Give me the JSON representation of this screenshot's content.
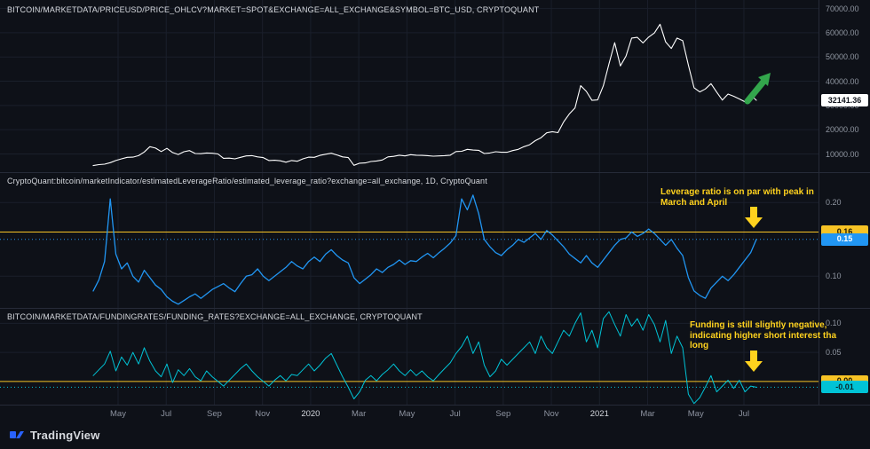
{
  "colors": {
    "background": "#0e1118",
    "grid": "#1a1f2b",
    "separator": "#262b38",
    "btc_line": "#ffffff",
    "leverage_line": "#2196f3",
    "funding_line": "#00c3d6",
    "highlight_yellow": "#f7c325",
    "annotation_yellow": "#ffd21e",
    "arrow_green": "#33a64c"
  },
  "icons": {
    "price_arrow": "green-up-right-arrow",
    "leverage_arrow": "yellow-down-arrow",
    "funding_arrow": "yellow-down-arrow",
    "brand": "tradingview-logo"
  },
  "x_axis": {
    "labels": [
      "May",
      "Jul",
      "Sep",
      "Nov",
      "2020",
      "Mar",
      "May",
      "Jul",
      "Sep",
      "Nov",
      "2021",
      "Mar",
      "May",
      "Jul"
    ]
  },
  "footer": {
    "brand": "TradingView"
  },
  "chart_data": [
    {
      "type": "line",
      "title": "BITCOIN/MARKETDATA/PRICEUSD/PRICE_OHLCV?MARKET=SPOT&EXCHANGE=ALL_EXCHANGE&SYMBOL=BTC_USD, CRYPTOQUANT",
      "color": "#ffffff",
      "ylim": [
        2500,
        73500
      ],
      "yticks": [
        {
          "label": "70000.00",
          "value": 70000
        },
        {
          "label": "60000.00",
          "value": 60000
        },
        {
          "label": "50000.00",
          "value": 50000
        },
        {
          "label": "40000.00",
          "value": 40000
        },
        {
          "label": "30000.00",
          "value": 30000
        },
        {
          "label": "20000.00",
          "value": 20000
        },
        {
          "label": "10000.00",
          "value": 10000
        }
      ],
      "current": {
        "label": "32141.36",
        "value": 32141,
        "bg": "#ffffff",
        "fg": "#10141c",
        "dotted": false
      },
      "values": [
        5200,
        5600,
        5800,
        6400,
        7300,
        8000,
        8600,
        8700,
        9300,
        10800,
        13000,
        12400,
        11000,
        12300,
        10600,
        9800,
        10900,
        11400,
        10200,
        10100,
        10400,
        10300,
        10000,
        8200,
        8300,
        8000,
        8600,
        9200,
        9300,
        8800,
        8500,
        7300,
        7400,
        7200,
        6600,
        7300,
        7000,
        8000,
        8700,
        8600,
        9400,
        9900,
        10300,
        9600,
        8800,
        8500,
        5300,
        6200,
        6300,
        6900,
        7100,
        7500,
        8800,
        9000,
        9500,
        9200,
        9700,
        9500,
        9400,
        9300,
        9100,
        9200,
        9300,
        9500,
        11000,
        11100,
        11900,
        11600,
        11500,
        10200,
        10400,
        10900,
        10700,
        10700,
        11400,
        11900,
        13000,
        13800,
        15500,
        16700,
        18700,
        19200,
        18800,
        23200,
        26500,
        29000,
        38200,
        35800,
        32100,
        32300,
        38100,
        47200,
        55900,
        46300,
        50400,
        57800,
        58100,
        55800,
        58200,
        59900,
        63500,
        56200,
        53500,
        57800,
        56700,
        46700,
        37300,
        35600,
        36800,
        39000,
        35500,
        32200,
        34700,
        33800,
        32700,
        31500,
        34300,
        32141
      ]
    },
    {
      "type": "line",
      "title": "CryptoQuant:bitcoin/marketIndicator/estimatedLeverageRatio/estimated_leverage_ratio?exchange=all_exchange, 1D, CryptoQuant",
      "color": "#2196f3",
      "ylim": [
        0.057,
        0.24
      ],
      "yticks": [
        {
          "label": "0.20",
          "value": 0.2
        },
        {
          "label": "0.10",
          "value": 0.1
        }
      ],
      "hline": {
        "label": "0.16",
        "value": 0.16,
        "color": "#f7c325"
      },
      "current": {
        "label": "0.15",
        "value": 0.15,
        "bg": "#2196f3",
        "fg": "#ffffff",
        "dotted": true
      },
      "annotation_lines": [
        "Leverage ratio is on par with peak in",
        "March and April"
      ],
      "values": [
        0.08,
        0.095,
        0.12,
        0.205,
        0.13,
        0.11,
        0.118,
        0.1,
        0.092,
        0.108,
        0.098,
        0.088,
        0.082,
        0.072,
        0.066,
        0.062,
        0.067,
        0.072,
        0.076,
        0.07,
        0.076,
        0.082,
        0.086,
        0.09,
        0.084,
        0.079,
        0.09,
        0.1,
        0.102,
        0.11,
        0.1,
        0.094,
        0.1,
        0.106,
        0.112,
        0.12,
        0.114,
        0.11,
        0.12,
        0.126,
        0.12,
        0.13,
        0.136,
        0.128,
        0.122,
        0.118,
        0.098,
        0.09,
        0.096,
        0.102,
        0.11,
        0.105,
        0.112,
        0.116,
        0.122,
        0.116,
        0.121,
        0.12,
        0.126,
        0.131,
        0.125,
        0.132,
        0.138,
        0.145,
        0.155,
        0.205,
        0.19,
        0.21,
        0.185,
        0.15,
        0.14,
        0.132,
        0.128,
        0.136,
        0.142,
        0.15,
        0.146,
        0.152,
        0.158,
        0.15,
        0.162,
        0.156,
        0.148,
        0.14,
        0.13,
        0.124,
        0.118,
        0.128,
        0.118,
        0.112,
        0.122,
        0.132,
        0.142,
        0.15,
        0.152,
        0.16,
        0.154,
        0.158,
        0.164,
        0.158,
        0.15,
        0.142,
        0.15,
        0.138,
        0.128,
        0.098,
        0.08,
        0.074,
        0.07,
        0.084,
        0.092,
        0.1,
        0.094,
        0.102,
        0.112,
        0.122,
        0.132,
        0.15
      ]
    },
    {
      "type": "line",
      "title": "BITCOIN/MARKETDATA/FUNDINGRATES/FUNDING_RATES?EXCHANGE=ALL_EXCHANGE, CRYPTOQUANT",
      "color": "#00c3d6",
      "ylim": [
        -0.04,
        0.125
      ],
      "yticks": [
        {
          "label": "0.10",
          "value": 0.1
        },
        {
          "label": "0.05",
          "value": 0.05
        }
      ],
      "hline": {
        "label": "0.00",
        "value": 0.0,
        "color": "#f7c325"
      },
      "current": {
        "label": "-0.01",
        "value": -0.01,
        "bg": "#00c3d6",
        "fg": "#07262b",
        "dotted": true
      },
      "annotation_lines": [
        "Funding is still slightly negative,",
        "indicating higher short interest tha",
        "long"
      ],
      "values": [
        0.01,
        0.02,
        0.03,
        0.052,
        0.018,
        0.042,
        0.028,
        0.05,
        0.03,
        0.058,
        0.035,
        0.018,
        0.008,
        0.03,
        -0.002,
        0.02,
        0.01,
        0.022,
        0.008,
        0.001,
        0.018,
        0.008,
        0.0,
        -0.008,
        0.002,
        0.012,
        0.022,
        0.03,
        0.018,
        0.008,
        0.0,
        -0.008,
        0.002,
        0.01,
        0.001,
        0.012,
        0.01,
        0.02,
        0.03,
        0.018,
        0.028,
        0.04,
        0.048,
        0.028,
        0.008,
        -0.01,
        -0.03,
        -0.018,
        0.002,
        0.01,
        0.001,
        0.012,
        0.02,
        0.03,
        0.018,
        0.01,
        0.02,
        0.01,
        0.018,
        0.008,
        0.001,
        0.012,
        0.022,
        0.032,
        0.048,
        0.06,
        0.078,
        0.048,
        0.068,
        0.028,
        0.008,
        0.018,
        0.038,
        0.028,
        0.038,
        0.048,
        0.058,
        0.068,
        0.048,
        0.078,
        0.058,
        0.048,
        0.068,
        0.088,
        0.078,
        0.1,
        0.118,
        0.068,
        0.088,
        0.058,
        0.108,
        0.12,
        0.098,
        0.078,
        0.115,
        0.095,
        0.108,
        0.088,
        0.115,
        0.098,
        0.068,
        0.105,
        0.048,
        0.078,
        0.058,
        -0.022,
        -0.038,
        -0.028,
        -0.01,
        0.01,
        -0.018,
        -0.008,
        0.002,
        -0.012,
        0.002,
        -0.018,
        -0.008,
        -0.01
      ]
    }
  ]
}
